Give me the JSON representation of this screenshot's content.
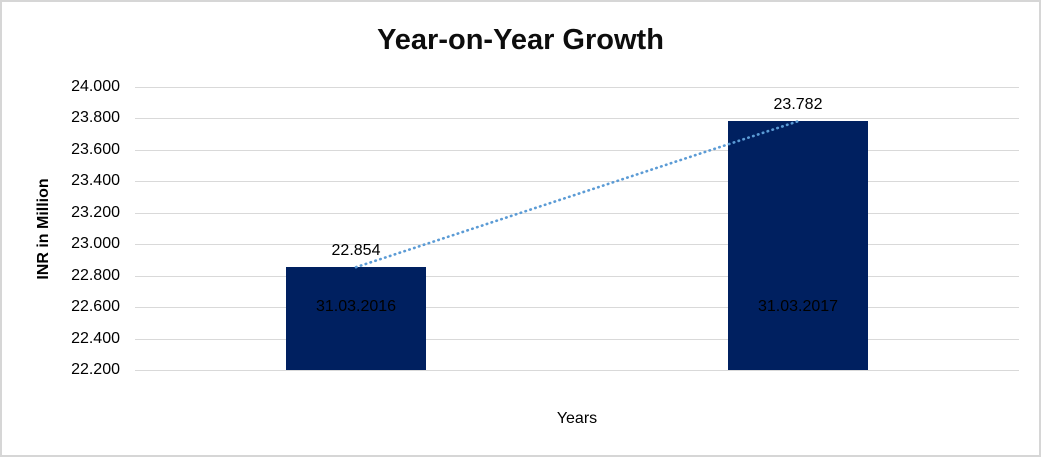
{
  "chart_data": {
    "type": "bar",
    "title": "Year-on-Year Growth",
    "xlabel": "Years",
    "ylabel": "INR in Million",
    "categories": [
      "31.03.2016",
      "31.03.2017"
    ],
    "values": [
      22.854,
      23.782
    ],
    "data_labels": [
      "22.854",
      "23.782"
    ],
    "y_ticks": [
      "24.000",
      "23.800",
      "23.600",
      "23.400",
      "23.200",
      "23.000",
      "22.800",
      "22.600",
      "22.400",
      "22.200"
    ],
    "ylim": [
      22.2,
      24.0
    ],
    "y_step": 0.2,
    "grid": true,
    "legend": "none",
    "trendline": {
      "style": "dotted",
      "color": "#5B9BD5",
      "connects": "bar tops"
    },
    "colors": {
      "bar": "#002060",
      "gridline": "#D9D9D9",
      "text": "#000000",
      "frame_border": "#D6D6D6",
      "background": "#FFFFFF"
    }
  }
}
